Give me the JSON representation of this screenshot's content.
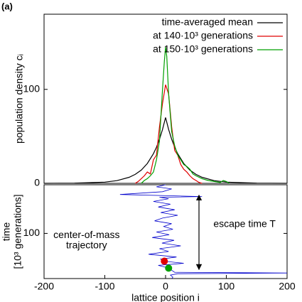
{
  "panel_label": "(a)",
  "chart_data": [
    {
      "type": "line",
      "ylabel": "population density cᵢ",
      "xlim": [
        -200,
        200
      ],
      "ylim": [
        0,
        180
      ],
      "yticks": [
        0,
        100
      ],
      "legend": "upper right",
      "series": [
        {
          "name": "time-averaged mean",
          "color": "#000000",
          "x": [
            -200,
            -150,
            -100,
            -80,
            -60,
            -50,
            -40,
            -30,
            -20,
            -15,
            -10,
            -5,
            0,
            5,
            10,
            15,
            20,
            30,
            40,
            50,
            60,
            80,
            100,
            150,
            200
          ],
          "values": [
            0,
            0.2,
            1.3,
            2.9,
            6.4,
            9.5,
            14.1,
            21.1,
            31.5,
            38.4,
            46.9,
            57.3,
            70,
            57.3,
            46.9,
            38.4,
            31.5,
            21.1,
            14.1,
            9.5,
            6.4,
            2.9,
            1.3,
            0.2,
            0
          ]
        },
        {
          "name": "at 140·10³ generations",
          "color": "#e00000",
          "x": [
            -50,
            -45,
            -40,
            -35,
            -30,
            -25,
            -20,
            -15,
            -10,
            -5,
            0,
            5,
            10,
            15,
            20,
            25,
            30,
            35,
            40,
            45,
            50,
            55,
            60
          ],
          "values": [
            0,
            2,
            5,
            8,
            12,
            10,
            25,
            30,
            60,
            85,
            105,
            95,
            60,
            35,
            30,
            20,
            15,
            12,
            8,
            5,
            3,
            1,
            0
          ]
        },
        {
          "name": "at 150·10³ generations",
          "color": "#00a000",
          "x": [
            -40,
            -35,
            -30,
            -25,
            -20,
            -15,
            -10,
            -5,
            -2,
            0,
            2,
            5,
            10,
            15,
            20,
            25,
            30,
            35,
            40,
            45,
            50,
            60,
            70,
            80,
            90,
            95,
            100,
            105
          ],
          "values": [
            0,
            3,
            5,
            8,
            12,
            25,
            45,
            100,
            130,
            145,
            135,
            95,
            55,
            40,
            30,
            25,
            20,
            18,
            15,
            10,
            8,
            5,
            3,
            2,
            1,
            3,
            2,
            0
          ]
        }
      ]
    },
    {
      "type": "trajectory",
      "xlabel": "lattice position i",
      "ylabel": "time",
      "ylabel2": "[10³ generations]",
      "xlim": [
        -200,
        200
      ],
      "xticks": [
        -200,
        -100,
        0,
        100,
        200
      ],
      "ylim": [
        30,
        165
      ],
      "yticks": [
        100
      ],
      "inverted": true,
      "series": [
        {
          "color": "#0000cc",
          "x": [
            0,
            -15,
            10,
            -5,
            -75,
            60,
            -10,
            5,
            -20,
            8,
            -12,
            15,
            -8,
            20,
            -5,
            -18,
            10,
            -3,
            12,
            -15,
            6,
            -22,
            14,
            -6,
            25,
            -10,
            5,
            -28,
            18,
            -8,
            -2,
            30,
            -12,
            5,
            10,
            15,
            200,
            20,
            8,
            12,
            10
          ],
          "values": [
            30,
            33,
            36,
            40,
            44,
            47,
            48,
            50,
            54,
            58,
            62,
            66,
            70,
            74,
            78,
            82,
            86,
            90,
            94,
            98,
            102,
            106,
            110,
            114,
            118,
            122,
            126,
            130,
            134,
            137,
            140,
            143,
            146,
            150,
            153,
            156,
            157,
            158,
            160,
            163,
            165
          ]
        }
      ],
      "points": [
        {
          "color": "#e00000",
          "x": -2,
          "y": 140
        },
        {
          "color": "#00a000",
          "x": 5,
          "y": 150
        }
      ],
      "annotations": [
        {
          "text": "center-of-mass",
          "x": -130,
          "y": 103
        },
        {
          "text": "trajectory",
          "x": -130,
          "y": 118
        },
        {
          "text": "escape time T",
          "x": 130,
          "y": 87
        }
      ],
      "arrow": {
        "x": 55,
        "y1": 45,
        "y2": 152
      }
    }
  ]
}
